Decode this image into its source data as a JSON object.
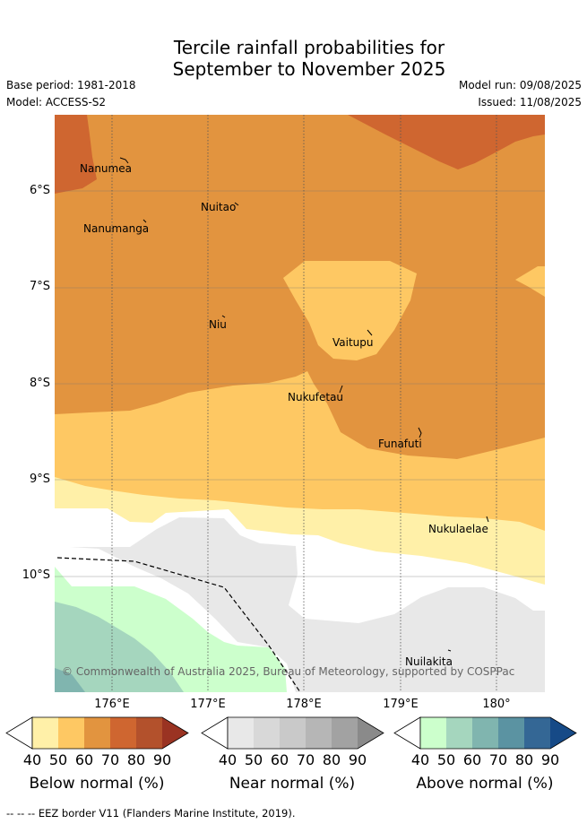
{
  "title_line1": "Tercile rainfall probabilities for",
  "title_line2": "September to November 2025",
  "base_period": "Base period: 1981-2018",
  "model": "Model: ACCESS-S2",
  "model_run": "Model run: 09/08/2025",
  "issued": "Issued: 11/08/2025",
  "lat_labels": [
    "6°S",
    "7°S",
    "8°S",
    "9°S",
    "10°S"
  ],
  "lon_labels": [
    "176°E",
    "177°E",
    "178°E",
    "179°E",
    "180°"
  ],
  "places": {
    "nanumea": "Nanumea",
    "nuitao": "Nuitao",
    "nanumanga": "Nanumanga",
    "niu": "Niu",
    "vaitupu": "Vaitupu",
    "nukufetau": "Nukufetau",
    "funafuti": "Funafuti",
    "nukulaelae": "Nukulaelae",
    "nuilakita": "Nuilakita"
  },
  "copyright": "© Commonwealth of Australia 2025, Bureau of Meteorology, supported by COSPPac",
  "colorbars": {
    "ticks": [
      "40",
      "50",
      "60",
      "70",
      "80",
      "90"
    ],
    "below": {
      "label": "Below normal (%)",
      "colors": [
        "#ffffff",
        "#fff0a8",
        "#fec863",
        "#e2943f",
        "#cf6630",
        "#b3512c",
        "#9a3322"
      ]
    },
    "near": {
      "label": "Near normal (%)",
      "colors": [
        "#ffffff",
        "#e8e8e8",
        "#d8d8d8",
        "#c9c9c9",
        "#b6b6b6",
        "#a2a2a2",
        "#8a8a8a"
      ]
    },
    "above": {
      "label": "Above normal (%)",
      "colors": [
        "#ffffff",
        "#ccffcc",
        "#a5d6be",
        "#80b5af",
        "#5b93a2",
        "#346795",
        "#164a87"
      ]
    }
  },
  "footnote": "--  --  -- EEZ border V11 (Flanders Marine Institute, 2019)."
}
